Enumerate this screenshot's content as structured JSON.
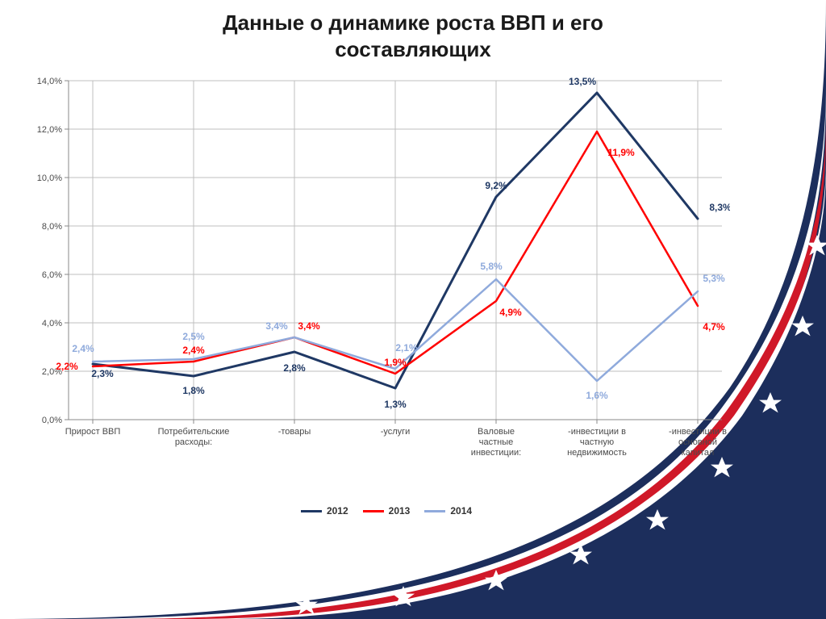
{
  "title_line1": "Данные о динамике роста ВВП и его",
  "title_line2": "составляющих",
  "chart": {
    "type": "line",
    "background_color": "#ffffff",
    "grid_color": "#bfbfbf",
    "axis_color": "#888888",
    "ylim": [
      0,
      14
    ],
    "ytick_step": 2,
    "yticks": [
      "0,0%",
      "2,0%",
      "4,0%",
      "6,0%",
      "8,0%",
      "10,0%",
      "12,0%",
      "14,0%"
    ],
    "categories": [
      "Прирост ВВП",
      "Потребительские расходы:",
      "-товары",
      "-услуги",
      "Валовые частные инвестиции:",
      "-инвестиции в частную недвижимость",
      "-инвестиции в основной капитал"
    ],
    "series": [
      {
        "name": "2012",
        "color": "#1f3864",
        "line_width": 3,
        "values": [
          2.3,
          1.8,
          2.8,
          1.3,
          9.2,
          13.5,
          8.3
        ],
        "labels": [
          "2,3%",
          "1,8%",
          "2,8%",
          "1,3%",
          "9,2%",
          "13,5%",
          "8,3%"
        ],
        "label_offsets": [
          {
            "dx": 12,
            "dy": 16
          },
          {
            "dx": 0,
            "dy": 22
          },
          {
            "dx": 0,
            "dy": 24
          },
          {
            "dx": 0,
            "dy": 24
          },
          {
            "dx": 0,
            "dy": -10
          },
          {
            "dx": -18,
            "dy": -10
          },
          {
            "dx": 28,
            "dy": -10
          }
        ]
      },
      {
        "name": "2013",
        "color": "#ff0000",
        "line_width": 2.5,
        "values": [
          2.2,
          2.4,
          3.4,
          1.9,
          4.9,
          11.9,
          4.7
        ],
        "labels": [
          "2,2%",
          "2,4%",
          "3,4%",
          "1,9%",
          "4,9%",
          "11,9%",
          "4,7%"
        ],
        "label_offsets": [
          {
            "dx": -32,
            "dy": 4
          },
          {
            "dx": 0,
            "dy": -10
          },
          {
            "dx": 18,
            "dy": -10
          },
          {
            "dx": 0,
            "dy": -10
          },
          {
            "dx": 18,
            "dy": 18
          },
          {
            "dx": 30,
            "dy": 30
          },
          {
            "dx": 20,
            "dy": 30
          }
        ]
      },
      {
        "name": "2014",
        "color": "#8faadc",
        "line_width": 2.5,
        "values": [
          2.4,
          2.5,
          3.4,
          2.1,
          5.8,
          1.6,
          5.3
        ],
        "labels": [
          "2,4%",
          "2,5%",
          "3,4%",
          "2,1%",
          "5,8%",
          "1,6%",
          "5,3%"
        ],
        "label_offsets": [
          {
            "dx": -12,
            "dy": -12
          },
          {
            "dx": 0,
            "dy": -24
          },
          {
            "dx": -22,
            "dy": -10
          },
          {
            "dx": 14,
            "dy": -22
          },
          {
            "dx": -6,
            "dy": -12
          },
          {
            "dx": 0,
            "dy": 22
          },
          {
            "dx": 20,
            "dy": -12
          }
        ]
      }
    ]
  },
  "legend": {
    "items": [
      {
        "label": "2012",
        "color": "#1f3864"
      },
      {
        "label": "2013",
        "color": "#ff0000"
      },
      {
        "label": "2014",
        "color": "#8faadc"
      }
    ]
  },
  "decor": {
    "arc_outer_color": "#1c2e5c",
    "arc_red_color": "#d01828",
    "arc_white_color": "#ffffff",
    "star_color": "#ffffff"
  }
}
